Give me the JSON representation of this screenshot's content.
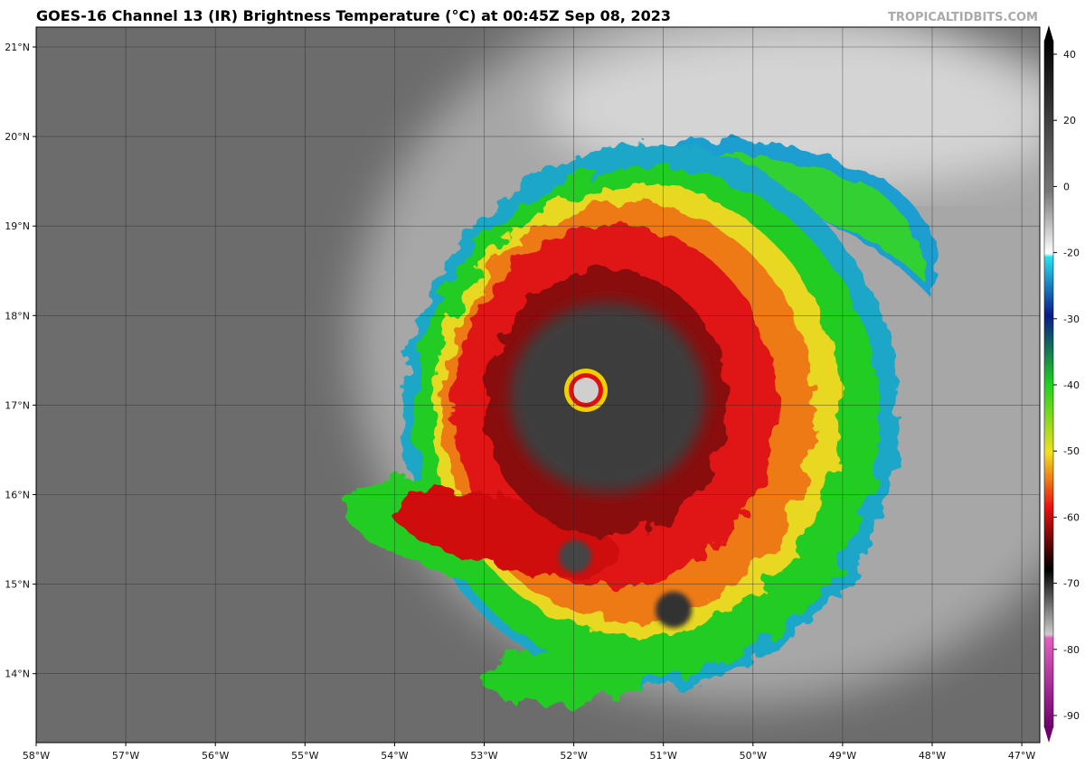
{
  "header": {
    "title": "GOES-16 Channel 13 (IR) Brightness Temperature (°C) at 00:45Z Sep 08, 2023",
    "credit": "TROPICALTIDBITS.COM"
  },
  "map": {
    "lat_labels": [
      "21°N",
      "20°N",
      "19°N",
      "18°N",
      "17°N",
      "16°N",
      "15°N",
      "14°N"
    ],
    "lon_labels": [
      "58°W",
      "57°W",
      "56°W",
      "55°W",
      "54°W",
      "53°W",
      "52°W",
      "51°W",
      "50°W",
      "49°W",
      "48°W",
      "47°W"
    ]
  },
  "colorbar": {
    "ticks": [
      40,
      20,
      0,
      -20,
      -30,
      -40,
      -50,
      -60,
      -70,
      -80,
      -90
    ]
  }
}
